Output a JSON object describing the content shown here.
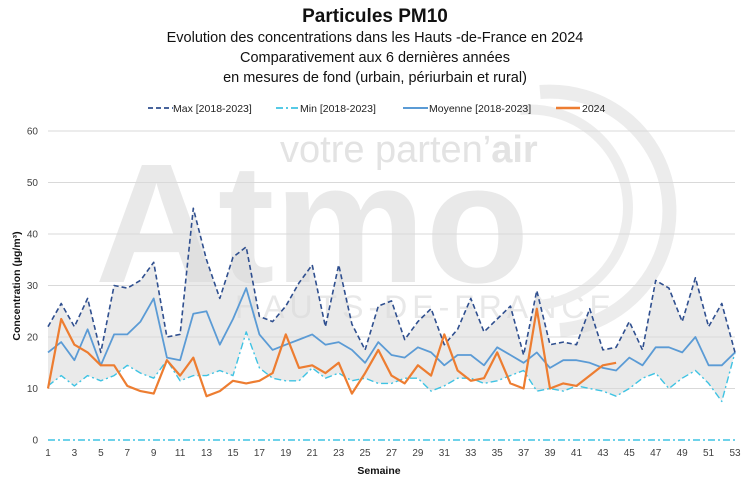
{
  "chart_data": {
    "type": "line",
    "title": "Particules PM10",
    "subtitle_lines": [
      "Evolution des concentrations dans les Hauts -de-France en 2024",
      "Comparativement aux 6 dernières années",
      "en mesures de fond (urbain, périurbain et rural)"
    ],
    "xlabel": "Semaine",
    "ylabel": "Concentration (µg/m³)",
    "ylim": [
      0,
      60
    ],
    "yticks": [
      0,
      10,
      20,
      30,
      40,
      50,
      60
    ],
    "xlim": [
      1,
      53
    ],
    "xticks": [
      1,
      3,
      5,
      7,
      9,
      11,
      13,
      15,
      17,
      19,
      21,
      23,
      25,
      27,
      29,
      31,
      33,
      35,
      37,
      39,
      41,
      43,
      45,
      47,
      49,
      51,
      53
    ],
    "grid": "horizontal",
    "legend_position": "top",
    "series": [
      {
        "name": "Max [2018-2023]",
        "style": "dashed",
        "color": "#2F4F8F",
        "x": [
          1,
          2,
          3,
          4,
          5,
          6,
          7,
          8,
          9,
          10,
          11,
          12,
          13,
          14,
          15,
          16,
          17,
          18,
          19,
          20,
          21,
          22,
          23,
          24,
          25,
          26,
          27,
          28,
          29,
          30,
          31,
          32,
          33,
          34,
          35,
          36,
          37,
          38,
          39,
          40,
          41,
          42,
          43,
          44,
          45,
          46,
          47,
          48,
          49,
          50,
          51,
          52,
          53
        ],
        "values": [
          22,
          26.5,
          22,
          27.5,
          17,
          30,
          29.5,
          31,
          34.5,
          20,
          20.5,
          45,
          35,
          27.5,
          35.5,
          37.5,
          24,
          23,
          26,
          30.5,
          34,
          22,
          34,
          22.5,
          17.5,
          26,
          27,
          19.5,
          23,
          25.5,
          18.5,
          21.5,
          27.5,
          21,
          23.5,
          26,
          16.5,
          29,
          18.5,
          19,
          18.5,
          25.5,
          17.5,
          18,
          23,
          17.5,
          31,
          29.5,
          23,
          31.5,
          22,
          26.5,
          17
        ]
      },
      {
        "name": "Min [2018-2023]",
        "style": "dashdot",
        "color": "#3FC3E3",
        "x": [
          1,
          2,
          3,
          4,
          5,
          6,
          7,
          8,
          9,
          10,
          11,
          12,
          13,
          14,
          15,
          16,
          17,
          18,
          19,
          20,
          21,
          22,
          23,
          24,
          25,
          26,
          27,
          28,
          29,
          30,
          31,
          32,
          33,
          34,
          35,
          36,
          37,
          38,
          39,
          40,
          41,
          42,
          43,
          44,
          45,
          46,
          47,
          48,
          49,
          50,
          51,
          52,
          53
        ],
        "values": [
          10.5,
          12.5,
          10.5,
          12.5,
          11.5,
          12.5,
          14.5,
          13,
          12,
          15.5,
          11.5,
          12.5,
          12.5,
          13.5,
          12.5,
          21,
          14,
          12,
          11.5,
          11.5,
          14,
          12,
          13,
          11.5,
          12,
          11,
          11,
          12,
          12,
          9.5,
          10.5,
          12,
          12,
          11,
          11.5,
          12.5,
          13.5,
          9.5,
          10,
          9.5,
          10.5,
          10,
          9.5,
          8.5,
          10,
          12,
          13,
          10,
          12,
          13.5,
          11,
          7.5,
          17
        ]
      },
      {
        "name": "Moyenne [2018-2023]",
        "style": "solid",
        "color": "#5B9BD5",
        "x": [
          1,
          2,
          3,
          4,
          5,
          6,
          7,
          8,
          9,
          10,
          11,
          12,
          13,
          14,
          15,
          16,
          17,
          18,
          19,
          20,
          21,
          22,
          23,
          24,
          25,
          26,
          27,
          28,
          29,
          30,
          31,
          32,
          33,
          34,
          35,
          36,
          37,
          38,
          39,
          40,
          41,
          42,
          43,
          44,
          45,
          46,
          47,
          48,
          49,
          50,
          51,
          52,
          53
        ],
        "values": [
          17,
          19,
          15.5,
          21.5,
          14.5,
          20.5,
          20.5,
          23,
          27.5,
          16,
          15.5,
          24.5,
          25,
          18.5,
          23.5,
          29.5,
          20.5,
          17.5,
          18.5,
          19.5,
          20.5,
          18.5,
          19,
          17.5,
          15,
          19,
          16.5,
          16,
          18,
          17,
          14.5,
          16.5,
          16.5,
          14.5,
          18,
          16.5,
          15,
          17,
          14,
          15.5,
          15.5,
          15,
          14,
          13.5,
          16,
          14.5,
          18,
          18,
          17,
          20,
          14.5,
          14.5,
          17
        ]
      },
      {
        "name": "2024",
        "style": "solid",
        "color": "#ED7D31",
        "x": [
          1,
          2,
          3,
          4,
          5,
          6,
          7,
          8,
          9,
          10,
          11,
          12,
          13,
          14,
          15,
          16,
          17,
          18,
          19,
          20,
          21,
          22,
          23,
          24,
          25,
          26,
          27,
          28,
          29,
          30,
          31,
          32,
          33,
          34,
          35,
          36,
          37,
          38,
          39,
          40,
          41,
          42,
          43,
          44
        ],
        "values": [
          10,
          23.5,
          18.5,
          17,
          14.5,
          14.5,
          10.5,
          9.5,
          9,
          15.5,
          12.5,
          16,
          8.5,
          9.5,
          11.5,
          11,
          11.5,
          13,
          20.5,
          14,
          14.5,
          13,
          15,
          9,
          13,
          17.5,
          12.5,
          11,
          14.5,
          12.5,
          20.5,
          13.5,
          11.5,
          12,
          17,
          11,
          10,
          25.5,
          10,
          11,
          10.5,
          12.5,
          14.5,
          15
        ]
      }
    ]
  },
  "legend": {
    "max_label": "Max [2018-2023]",
    "min_label": "Min [2018-2023]",
    "mean_label": "Moyenne [2018-2023]",
    "y2024_label": "2024"
  },
  "watermark": {
    "tagline_normal": "votre parten’",
    "tagline_bold": "air",
    "logo_text": "Atmo",
    "region_text": "HAUTS-DE-FRANCE"
  },
  "colors": {
    "band": "#D9D9D9",
    "grid": "#D9D9D9",
    "zero_line": "#3FC3E3"
  }
}
